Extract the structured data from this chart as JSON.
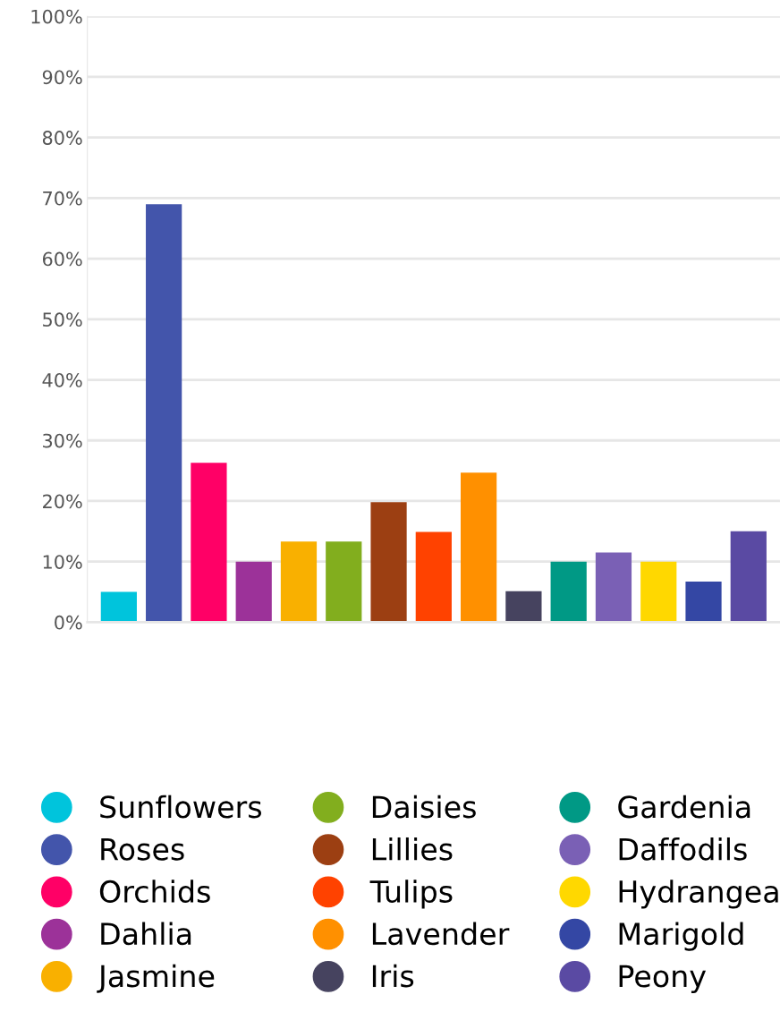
{
  "chart_data": {
    "type": "bar",
    "categories": [
      null,
      null,
      null,
      null,
      null,
      null,
      null,
      null,
      null,
      null,
      null,
      null,
      null,
      null,
      null
    ],
    "series": [
      {
        "name": "Sunflowers",
        "color": "#00c4dc",
        "values": [
          5,
          null,
          null,
          null,
          null,
          null,
          null,
          null,
          null,
          null,
          null,
          null,
          null,
          null,
          null
        ]
      },
      {
        "name": "Roses",
        "color": "#4355ab",
        "values": [
          null,
          69,
          null,
          null,
          null,
          null,
          null,
          null,
          null,
          null,
          null,
          null,
          null,
          null,
          null
        ]
      },
      {
        "name": "Orchids",
        "color": "#ff0066",
        "values": [
          null,
          null,
          26.3,
          null,
          null,
          null,
          null,
          null,
          null,
          null,
          null,
          null,
          null,
          null,
          null
        ]
      },
      {
        "name": "Dahlia",
        "color": "#9c3299",
        "values": [
          null,
          null,
          null,
          10,
          null,
          null,
          null,
          null,
          null,
          null,
          null,
          null,
          null,
          null,
          null
        ]
      },
      {
        "name": "Jasmine",
        "color": "#f9b000",
        "values": [
          null,
          null,
          null,
          null,
          13.3,
          null,
          null,
          null,
          null,
          null,
          null,
          null,
          null,
          null,
          null
        ]
      },
      {
        "name": "Daisies",
        "color": "#82ae1e",
        "values": [
          null,
          null,
          null,
          null,
          null,
          13.3,
          null,
          null,
          null,
          null,
          null,
          null,
          null,
          null,
          null
        ]
      },
      {
        "name": "Lillies",
        "color": "#9c3f12",
        "values": [
          null,
          null,
          null,
          null,
          null,
          null,
          19.8,
          null,
          null,
          null,
          null,
          null,
          null,
          null,
          null
        ]
      },
      {
        "name": "Tulips",
        "color": "#ff4200",
        "values": [
          null,
          null,
          null,
          null,
          null,
          null,
          null,
          14.9,
          null,
          null,
          null,
          null,
          null,
          null,
          null
        ]
      },
      {
        "name": "Lavender",
        "color": "#ff9000",
        "values": [
          null,
          null,
          null,
          null,
          null,
          null,
          null,
          null,
          24.7,
          null,
          null,
          null,
          null,
          null,
          null
        ]
      },
      {
        "name": "Iris",
        "color": "#46435f",
        "values": [
          null,
          null,
          null,
          null,
          null,
          null,
          null,
          null,
          null,
          5.1,
          null,
          null,
          null,
          null,
          null
        ]
      },
      {
        "name": "Gardenia",
        "color": "#009985",
        "values": [
          null,
          null,
          null,
          null,
          null,
          null,
          null,
          null,
          null,
          null,
          10,
          null,
          null,
          null,
          null
        ]
      },
      {
        "name": "Daffodils",
        "color": "#7a60b5",
        "values": [
          null,
          null,
          null,
          null,
          null,
          null,
          null,
          null,
          null,
          null,
          null,
          11.5,
          null,
          null,
          null
        ]
      },
      {
        "name": "Hydrangea",
        "color": "#ffd800",
        "values": [
          null,
          null,
          null,
          null,
          null,
          null,
          null,
          null,
          null,
          null,
          null,
          null,
          10,
          null,
          null
        ]
      },
      {
        "name": "Marigold",
        "color": "#3447a4",
        "values": [
          null,
          null,
          null,
          null,
          null,
          null,
          null,
          null,
          null,
          null,
          null,
          null,
          null,
          6.7,
          null
        ]
      },
      {
        "name": "Peony",
        "color": "#5a4aa3",
        "values": [
          null,
          null,
          null,
          null,
          null,
          null,
          null,
          null,
          null,
          null,
          null,
          null,
          null,
          null,
          15
        ]
      }
    ],
    "ylim": [
      0,
      100
    ],
    "yticks": [
      {
        "value": 0,
        "label": "0%"
      },
      {
        "value": 10,
        "label": "10%"
      },
      {
        "value": 20,
        "label": "20%"
      },
      {
        "value": 30,
        "label": "30%"
      },
      {
        "value": 40,
        "label": "40%"
      },
      {
        "value": 50,
        "label": "50%"
      },
      {
        "value": 60,
        "label": "60%"
      },
      {
        "value": 70,
        "label": "70%"
      },
      {
        "value": 80,
        "label": "80%"
      },
      {
        "value": 90,
        "label": "90%"
      },
      {
        "value": 100,
        "label": "100%"
      }
    ],
    "grid": "y",
    "legend": "bottom"
  }
}
